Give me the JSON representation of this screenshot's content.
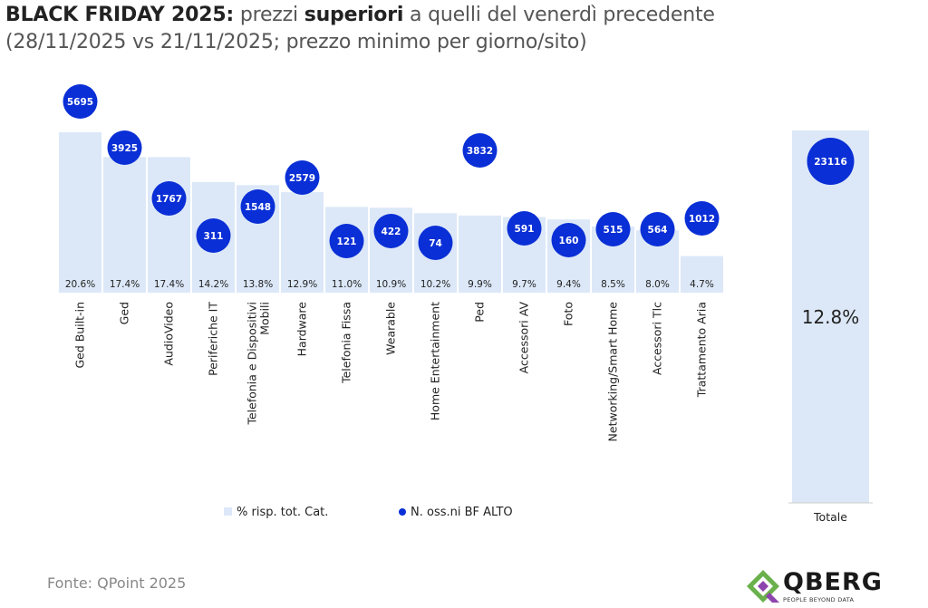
{
  "title": {
    "bold_part": "BLACK FRIDAY 2025:",
    "part2": " prezzi ",
    "bold_part2": "superiori",
    "part3": " a quelli del venerdì precedente",
    "line2": "(28/11/2025 vs 21/11/2025; prezzo minimo per giorno/sito)"
  },
  "source": "Fonte: QPoint 2025",
  "logo": {
    "name": "QBERG",
    "tagline": "PEOPLE BEYOND DATA"
  },
  "colors": {
    "bar": "#dce8f8",
    "bubble": "#0a2fd6",
    "text": "#222222"
  },
  "chart_data": {
    "type": "bar",
    "categories": [
      "Ged Built-in",
      "Ged",
      "AudioVideo",
      "Periferiche IT",
      "Telefonia e Dispositivi Mobili",
      "Hardware",
      "Telefonia Fissa",
      "Wearable",
      "Home Entertainment",
      "Ped",
      "Accessori AV",
      "Foto",
      "Networking/Smart Home",
      "Accessori Tlc",
      "Trattamento Aria"
    ],
    "category_lines": [
      [
        "Ged Built-in"
      ],
      [
        "Ged"
      ],
      [
        "AudioVideo"
      ],
      [
        "Periferiche IT"
      ],
      [
        "Telefonia e Dispositivi",
        "Mobili"
      ],
      [
        "Hardware"
      ],
      [
        "Telefonia Fissa"
      ],
      [
        "Wearable"
      ],
      [
        "Home Entertainment"
      ],
      [
        "Ped"
      ],
      [
        "Accessori AV"
      ],
      [
        "Foto"
      ],
      [
        "Networking/Smart Home"
      ],
      [
        "Accessori Tlc"
      ],
      [
        "Trattamento Aria"
      ]
    ],
    "series": [
      {
        "name": "% risp. tot. Cat.",
        "values": [
          20.6,
          17.4,
          17.4,
          14.2,
          13.8,
          12.9,
          11.0,
          10.9,
          10.2,
          9.9,
          9.7,
          9.4,
          8.5,
          8.0,
          4.7
        ],
        "labels": [
          "20.6%",
          "17.4%",
          "17.4%",
          "14.2%",
          "13.8%",
          "12.9%",
          "11.0%",
          "10.9%",
          "10.2%",
          "9.9%",
          "9.7%",
          "9.4%",
          "8.5%",
          "8.0%",
          "4.7%"
        ]
      },
      {
        "name": "N. oss.ni BF ALTO",
        "values": [
          5695,
          3925,
          1767,
          311,
          1548,
          2579,
          121,
          422,
          74,
          3832,
          591,
          160,
          515,
          564,
          1012
        ]
      }
    ],
    "total": {
      "category": "Totale",
      "value": 12.8,
      "label": "12.8%",
      "bubble": 23116
    },
    "legend": [
      "% risp. tot. Cat.",
      "N. oss.ni BF ALTO"
    ],
    "legend_position": "bottom"
  }
}
